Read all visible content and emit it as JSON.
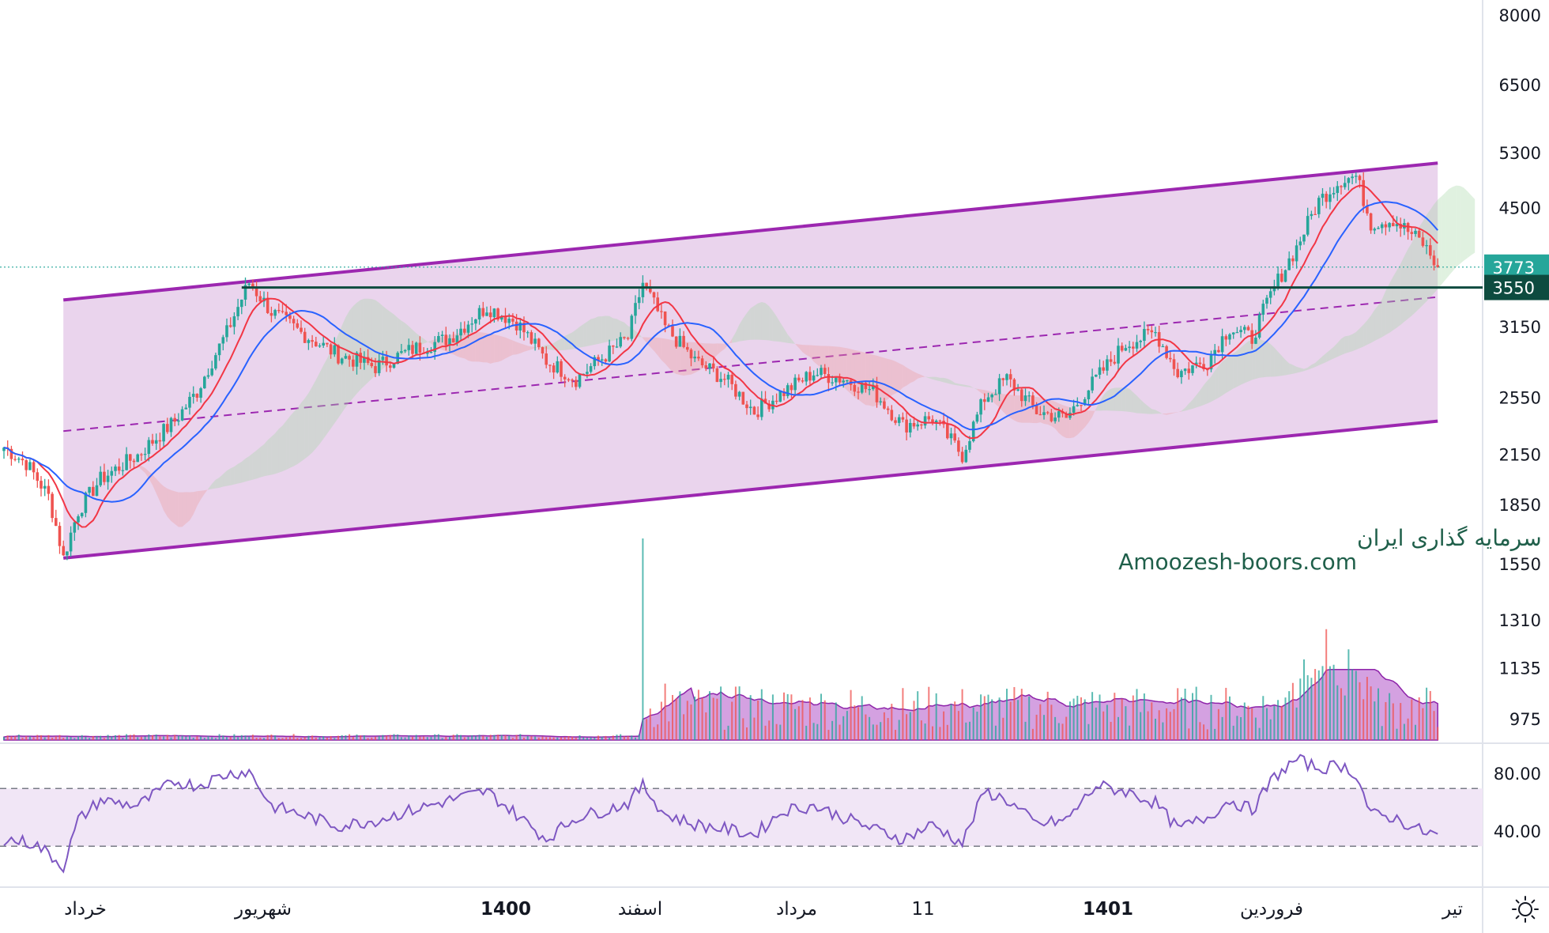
{
  "chart_data": [
    {
      "type": "candlestick",
      "panel": "price",
      "scale": "log",
      "yaxis_ticks": [
        "8000",
        "6500",
        "5300",
        "4500",
        "3773",
        "3550",
        "3150",
        "2550",
        "2150",
        "1850",
        "1550",
        "1310",
        "1135",
        "975"
      ],
      "xaxis_ticks": [
        "خرداد",
        "شهریور",
        "1400",
        "اسفند",
        "مرداد",
        "11",
        "1401",
        "فروردین",
        "تیر"
      ],
      "bold_xticks": [
        "1400",
        "1401"
      ],
      "last_price": {
        "label": "3773",
        "value": 3773,
        "color": "#26a69a"
      },
      "horizontal_line": {
        "label": "3550",
        "value": 3550,
        "color": "#0d4b3f"
      },
      "anchors": [
        [
          0,
          2200
        ],
        [
          6,
          2100
        ],
        [
          12,
          1900
        ],
        [
          16,
          1580
        ],
        [
          20,
          1820
        ],
        [
          26,
          2000
        ],
        [
          36,
          2150
        ],
        [
          46,
          2380
        ],
        [
          52,
          2600
        ],
        [
          60,
          3100
        ],
        [
          66,
          3600
        ],
        [
          72,
          3300
        ],
        [
          80,
          3100
        ],
        [
          90,
          2900
        ],
        [
          100,
          2800
        ],
        [
          110,
          2950
        ],
        [
          120,
          3050
        ],
        [
          130,
          3350
        ],
        [
          138,
          3200
        ],
        [
          146,
          2850
        ],
        [
          154,
          2700
        ],
        [
          162,
          2900
        ],
        [
          168,
          3050
        ],
        [
          172,
          3600
        ],
        [
          178,
          3150
        ],
        [
          186,
          2850
        ],
        [
          194,
          2700
        ],
        [
          202,
          2450
        ],
        [
          210,
          2600
        ],
        [
          218,
          2750
        ],
        [
          226,
          2700
        ],
        [
          234,
          2600
        ],
        [
          242,
          2350
        ],
        [
          250,
          2400
        ],
        [
          258,
          2150
        ],
        [
          264,
          2550
        ],
        [
          270,
          2700
        ],
        [
          278,
          2450
        ],
        [
          286,
          2400
        ],
        [
          294,
          2700
        ],
        [
          302,
          3000
        ],
        [
          310,
          3100
        ],
        [
          316,
          2750
        ],
        [
          324,
          2850
        ],
        [
          330,
          3150
        ],
        [
          336,
          3050
        ],
        [
          342,
          3550
        ],
        [
          348,
          4000
        ],
        [
          354,
          4600
        ],
        [
          360,
          4900
        ],
        [
          364,
          4950
        ],
        [
          368,
          4300
        ],
        [
          374,
          4350
        ],
        [
          382,
          4050
        ],
        [
          386,
          3773
        ]
      ],
      "channel": {
        "upper": [
          [
            16,
            3420
          ],
          [
            386,
            5150
          ]
        ],
        "lower": [
          [
            16,
            1580
          ],
          [
            386,
            2380
          ]
        ],
        "median_dashed": [
          [
            16,
            2310
          ],
          [
            386,
            3450
          ]
        ],
        "fill": "#e6cdea",
        "line_color": "#9c27b0"
      },
      "ichimoku": {
        "colors": {
          "bull": "#a5d6a7",
          "bear": "#ef9a9a"
        }
      },
      "ma_colors": {
        "fast": "#f23645",
        "slow": "#2962ff"
      },
      "candle_colors": {
        "up": "#26a69a",
        "down": "#ef5350"
      },
      "watermark": {
        "line1": "انجمن خبرگان سرمایه گذاری ایران",
        "line2": "Amoozesh-boors.com"
      }
    },
    {
      "type": "bar",
      "panel": "volume",
      "volume_start_bar": 172,
      "spike": [
        [
          172,
          1.0
        ],
        [
          178,
          0.28
        ],
        [
          356,
          0.55
        ],
        [
          362,
          0.45
        ],
        [
          350,
          0.4
        ]
      ],
      "colors": {
        "area": "#b054c9",
        "up_bar": "#26a69a",
        "down_bar": "#ef5350"
      }
    },
    {
      "type": "line",
      "panel": "rsi",
      "yaxis_ticks": [
        "80.00",
        "40.00"
      ],
      "band": [
        30,
        70
      ],
      "ylim": [
        10,
        100
      ],
      "anchors": [
        [
          0,
          35
        ],
        [
          8,
          32
        ],
        [
          12,
          25
        ],
        [
          16,
          16
        ],
        [
          20,
          48
        ],
        [
          26,
          62
        ],
        [
          36,
          58
        ],
        [
          46,
          75
        ],
        [
          52,
          72
        ],
        [
          60,
          80
        ],
        [
          66,
          82
        ],
        [
          72,
          58
        ],
        [
          80,
          52
        ],
        [
          90,
          44
        ],
        [
          100,
          48
        ],
        [
          110,
          55
        ],
        [
          120,
          62
        ],
        [
          130,
          68
        ],
        [
          138,
          52
        ],
        [
          146,
          35
        ],
        [
          154,
          50
        ],
        [
          162,
          55
        ],
        [
          168,
          60
        ],
        [
          172,
          72
        ],
        [
          178,
          52
        ],
        [
          186,
          45
        ],
        [
          194,
          42
        ],
        [
          202,
          38
        ],
        [
          210,
          55
        ],
        [
          218,
          58
        ],
        [
          226,
          50
        ],
        [
          234,
          42
        ],
        [
          242,
          35
        ],
        [
          250,
          45
        ],
        [
          258,
          32
        ],
        [
          264,
          68
        ],
        [
          270,
          62
        ],
        [
          278,
          45
        ],
        [
          286,
          48
        ],
        [
          294,
          72
        ],
        [
          302,
          68
        ],
        [
          310,
          60
        ],
        [
          316,
          42
        ],
        [
          324,
          50
        ],
        [
          330,
          62
        ],
        [
          336,
          55
        ],
        [
          342,
          78
        ],
        [
          348,
          90
        ],
        [
          354,
          84
        ],
        [
          360,
          86
        ],
        [
          364,
          80
        ],
        [
          368,
          52
        ],
        [
          374,
          50
        ],
        [
          382,
          40
        ],
        [
          386,
          38
        ]
      ],
      "line_color": "#7e57c2",
      "band_fill": "#f1e6f6"
    }
  ],
  "ui": {
    "settings_icon": "gear-icon"
  }
}
